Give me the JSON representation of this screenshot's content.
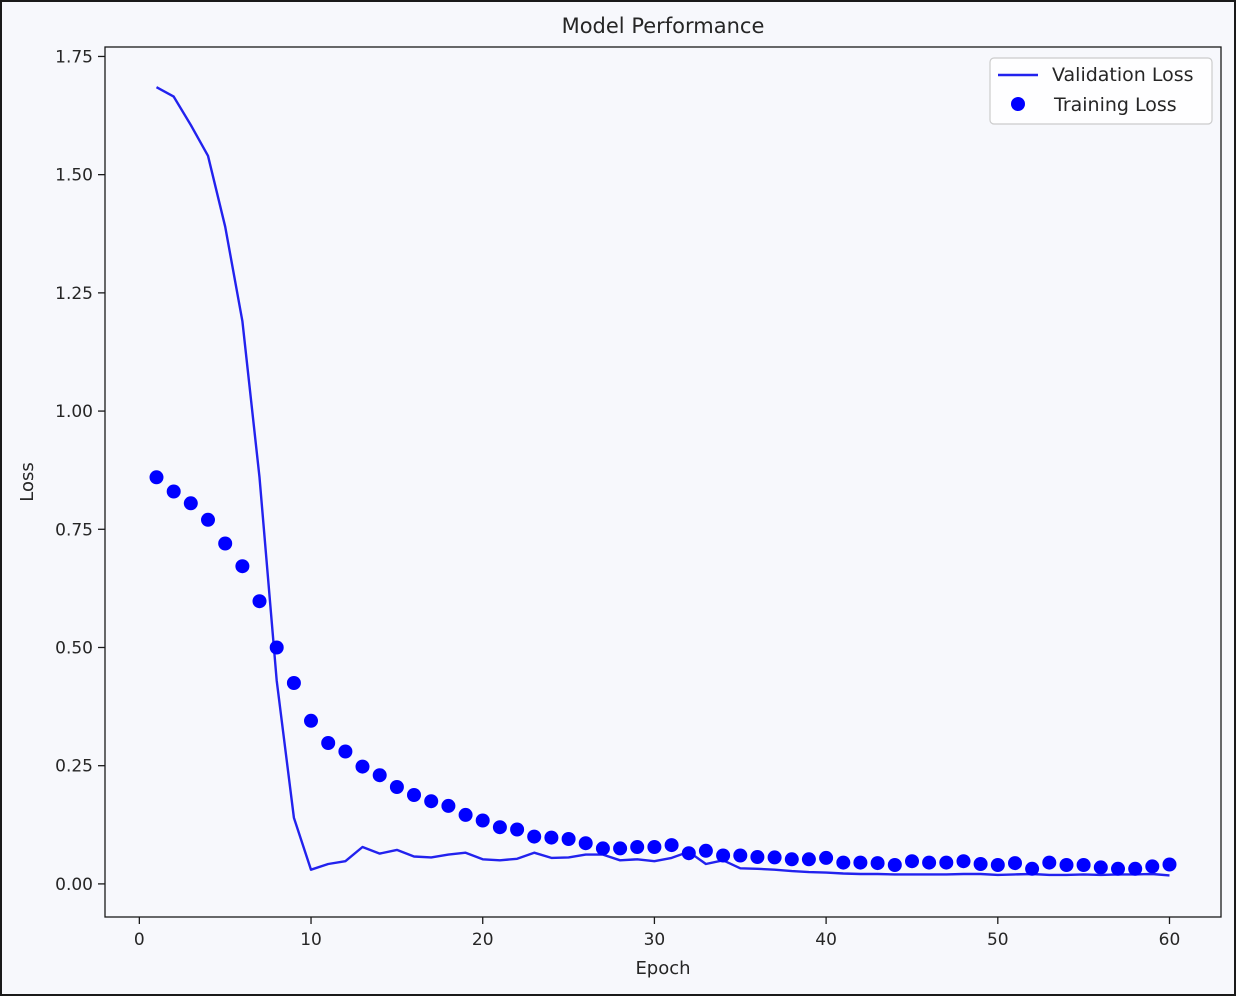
{
  "chart_data": {
    "type": "line",
    "title": "Model Performance",
    "xlabel": "Epoch",
    "ylabel": "Loss",
    "xlim": [
      -2,
      63
    ],
    "ylim": [
      -0.07,
      1.77
    ],
    "xticks": [
      0,
      10,
      20,
      30,
      40,
      50,
      60
    ],
    "yticks": [
      0.0,
      0.25,
      0.5,
      0.75,
      1.0,
      1.25,
      1.5,
      1.75
    ],
    "ytick_labels": [
      "0.00",
      "0.25",
      "0.50",
      "0.75",
      "1.00",
      "1.25",
      "1.50",
      "1.75"
    ],
    "grid": false,
    "legend_position": "top-right",
    "x": [
      1,
      2,
      3,
      4,
      5,
      6,
      7,
      8,
      9,
      10,
      11,
      12,
      13,
      14,
      15,
      16,
      17,
      18,
      19,
      20,
      21,
      22,
      23,
      24,
      25,
      26,
      27,
      28,
      29,
      30,
      31,
      32,
      33,
      34,
      35,
      36,
      37,
      38,
      39,
      40,
      41,
      42,
      43,
      44,
      45,
      46,
      47,
      48,
      49,
      50,
      51,
      52,
      53,
      54,
      55,
      56,
      57,
      58,
      59,
      60
    ],
    "series": [
      {
        "name": "Validation Loss",
        "style": "line",
        "color": "#2222ee",
        "values": [
          1.685,
          1.665,
          1.605,
          1.54,
          1.39,
          1.19,
          0.86,
          0.43,
          0.14,
          0.03,
          0.042,
          0.048,
          0.078,
          0.064,
          0.072,
          0.058,
          0.056,
          0.062,
          0.066,
          0.052,
          0.05,
          0.053,
          0.066,
          0.055,
          0.056,
          0.062,
          0.062,
          0.05,
          0.052,
          0.048,
          0.055,
          0.068,
          0.042,
          0.05,
          0.033,
          0.032,
          0.03,
          0.027,
          0.025,
          0.024,
          0.022,
          0.021,
          0.021,
          0.02,
          0.02,
          0.02,
          0.02,
          0.021,
          0.021,
          0.019,
          0.02,
          0.021,
          0.019,
          0.019,
          0.02,
          0.019,
          0.02,
          0.02,
          0.021,
          0.018
        ]
      },
      {
        "name": "Training Loss",
        "style": "scatter",
        "color": "#0000ff",
        "values": [
          0.86,
          0.83,
          0.805,
          0.77,
          0.72,
          0.672,
          0.598,
          0.5,
          0.425,
          0.345,
          0.298,
          0.28,
          0.248,
          0.23,
          0.205,
          0.188,
          0.175,
          0.165,
          0.146,
          0.134,
          0.12,
          0.115,
          0.1,
          0.098,
          0.095,
          0.086,
          0.075,
          0.075,
          0.078,
          0.078,
          0.082,
          0.065,
          0.07,
          0.06,
          0.06,
          0.057,
          0.056,
          0.052,
          0.052,
          0.055,
          0.045,
          0.045,
          0.044,
          0.04,
          0.048,
          0.045,
          0.045,
          0.048,
          0.042,
          0.04,
          0.044,
          0.032,
          0.045,
          0.04,
          0.04,
          0.035,
          0.032,
          0.032,
          0.037,
          0.041
        ]
      }
    ]
  }
}
